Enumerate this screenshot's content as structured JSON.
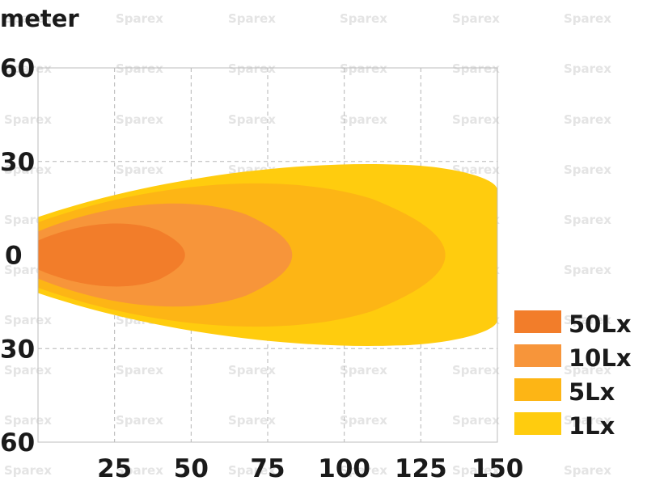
{
  "chart_data": {
    "type": "area",
    "y_unit_label": "meter",
    "watermark": "Sparex",
    "x_ticks": [
      25,
      50,
      75,
      100,
      125,
      150
    ],
    "y_ticks": [
      60,
      30,
      0,
      30,
      60
    ],
    "xlim": [
      0,
      150
    ],
    "ylim": [
      -60,
      60
    ],
    "grid": true,
    "legend_position": "right-bottom",
    "series": [
      {
        "name": "1Lx",
        "color": "#FFCC0E",
        "reach": 150,
        "half_width": 29
      },
      {
        "name": "5Lx",
        "color": "#FDB515",
        "reach": 133,
        "half_width": 25
      },
      {
        "name": "10Lx",
        "color": "#F7953A",
        "reach": 83,
        "half_width": 18
      },
      {
        "name": "50Lx",
        "color": "#F27D2A",
        "reach": 48,
        "half_width": 11
      }
    ],
    "legend": [
      {
        "label": "50Lx",
        "color": "#F27D2A"
      },
      {
        "label": "10Lx",
        "color": "#F7953A"
      },
      {
        "label": "5Lx",
        "color": "#FDB515"
      },
      {
        "label": "1Lx",
        "color": "#FFCC0E"
      }
    ]
  }
}
